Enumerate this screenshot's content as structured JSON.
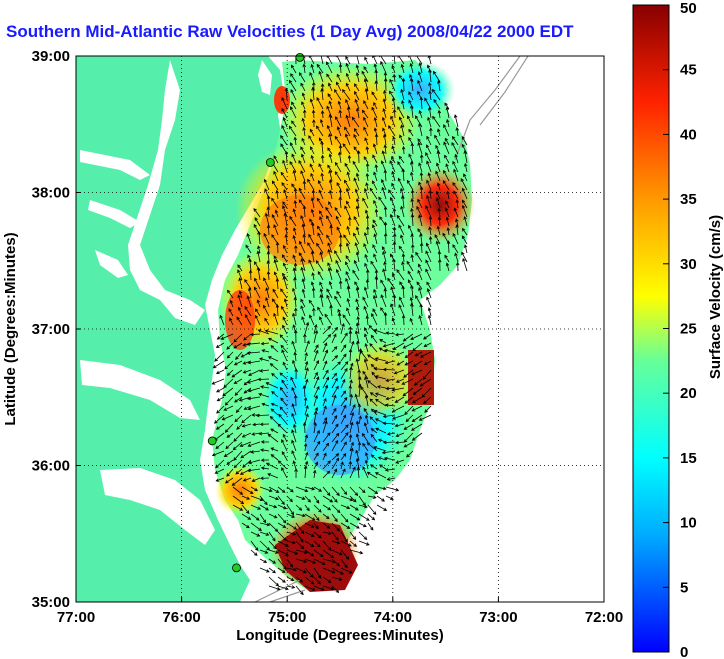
{
  "title": "Southern Mid-Atlantic Raw Velocities (1 Day Avg) 2008/04/22 2000 EDT",
  "map": {
    "xlabel": "Longitude (Degrees:Minutes)",
    "ylabel": "Latitude (Degrees:Minutes)",
    "lon_range": [
      -77,
      -72
    ],
    "lat_range": [
      35,
      39
    ],
    "x_ticks": [
      {
        "value": -77,
        "label": "77:00"
      },
      {
        "value": -76,
        "label": "76:00"
      },
      {
        "value": -75,
        "label": "75:00"
      },
      {
        "value": -74,
        "label": "74:00"
      },
      {
        "value": -73,
        "label": "73:00"
      },
      {
        "value": -72,
        "label": "72:00"
      }
    ],
    "y_ticks": [
      {
        "value": 35,
        "label": "35:00"
      },
      {
        "value": 36,
        "label": "36:00"
      },
      {
        "value": 37,
        "label": "37:00"
      },
      {
        "value": 38,
        "label": "38:00"
      },
      {
        "value": 39,
        "label": "39:00"
      }
    ],
    "grid": "dotted",
    "land_color": "#55eeaa",
    "contour_color": "#999999",
    "station_color": "#22cc22"
  },
  "colorbar": {
    "label": "Surface Velocity (cm/s)",
    "min": 0,
    "max": 50,
    "ticks": [
      "0",
      "5",
      "10",
      "15",
      "20",
      "25",
      "30",
      "35",
      "40",
      "45",
      "50"
    ],
    "colormap": "jet"
  },
  "stations": [
    {
      "lon": -74.88,
      "lat": 38.99
    },
    {
      "lon": -75.16,
      "lat": 38.22
    },
    {
      "lon": -75.71,
      "lat": 36.18
    },
    {
      "lon": -75.48,
      "lat": 35.25
    }
  ]
}
